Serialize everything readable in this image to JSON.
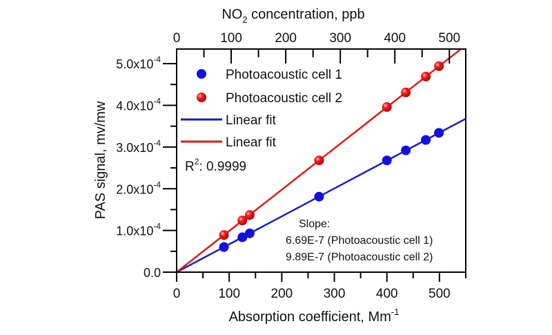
{
  "chart_data": {
    "type": "scatter",
    "xlabel": "Absorption coefficient, Mm",
    "xlabel_sup": "-1",
    "x2label_pre": "NO",
    "x2label_sub": "2",
    "x2label_post": " concentration, ppb",
    "ylabel": "PAS signal, mv/mw",
    "xlim": [
      0,
      550
    ],
    "x2lim": [
      0,
      530
    ],
    "ylim": [
      0,
      0.000535
    ],
    "xticks": [
      0,
      100,
      200,
      300,
      400,
      500
    ],
    "x2ticks": [
      0,
      100,
      200,
      300,
      400,
      500
    ],
    "yticks": [
      {
        "value": 0,
        "label": "0.0",
        "sup": ""
      },
      {
        "value": 0.0001,
        "label": "1.0x10",
        "sup": "-4"
      },
      {
        "value": 0.0002,
        "label": "2.0x10",
        "sup": "-4"
      },
      {
        "value": 0.0003,
        "label": "3.0x10",
        "sup": "-4"
      },
      {
        "value": 0.0004,
        "label": "4.0x10",
        "sup": "-4"
      },
      {
        "value": 0.0005,
        "label": "5.0x10",
        "sup": "-4"
      }
    ],
    "grid": false,
    "legend_position": "top-left",
    "series": [
      {
        "name": "Photoacoustic cell 1",
        "color": "#1010e0",
        "marker": "circle",
        "x": [
          90,
          125,
          139,
          271,
          400,
          436,
          474,
          499
        ],
        "y": [
          6.02e-05,
          8.36e-05,
          9.3e-05,
          0.000181,
          0.000268,
          0.000292,
          0.000317,
          0.000334
        ]
      },
      {
        "name": "Photoacoustic cell 2",
        "color": "#e01010",
        "marker": "sphere",
        "x": [
          90,
          125,
          139,
          271,
          400,
          436,
          474,
          499
        ],
        "y": [
          8.9e-05,
          0.000124,
          0.000137,
          0.000268,
          0.000396,
          0.000431,
          0.000469,
          0.000494
        ]
      }
    ],
    "fits": [
      {
        "name": "Linear fit",
        "color": "#1a1acc",
        "slope": 6.69e-07,
        "intercept": 0
      },
      {
        "name": "Linear fit",
        "color": "#d61c1c",
        "slope": 9.89e-07,
        "intercept": 0
      }
    ],
    "annotations": {
      "r2_label": "R",
      "r2_sup": "2",
      "r2_value": ": 0.9999",
      "slope_title": "Slope:",
      "slope_lines": [
        "6.69E-7 (Photoacoustic cell 1)",
        "9.89E-7 (Photoacoustic cell 2)"
      ]
    }
  }
}
